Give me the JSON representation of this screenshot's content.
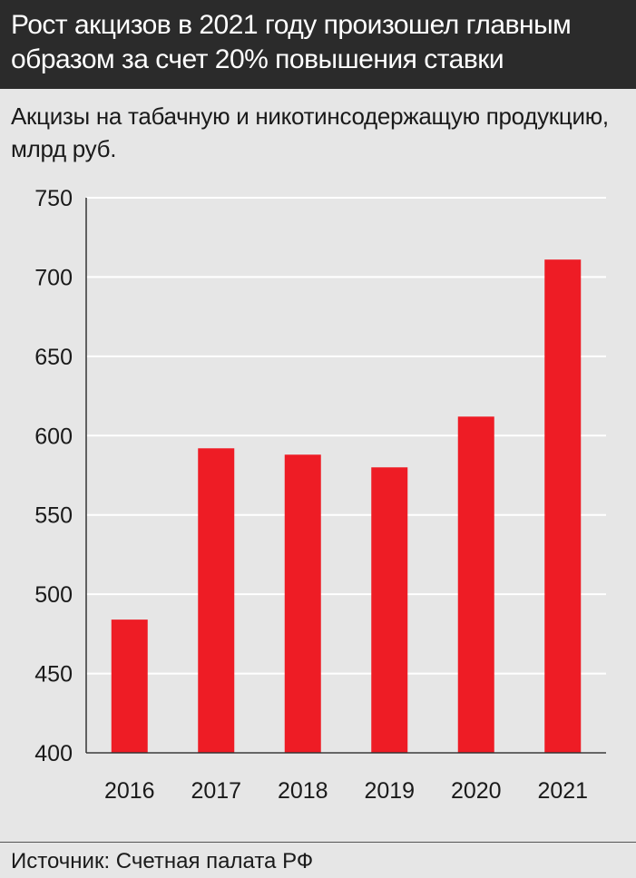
{
  "header": {
    "title": "Рост акцизов в 2021 году произошел главным образом за счет 20% повышения ставки"
  },
  "subtitle": "Акцизы на табачную и никотинсодержащую продукцию, млрд руб.",
  "source": "Источник: Счетная палата РФ",
  "colors": {
    "bar": "#ee1c25",
    "header_bg": "#2b2b2b",
    "background": "#e6e6e6",
    "grid": "#ffffff"
  },
  "chart_data": {
    "type": "bar",
    "categories": [
      "2016",
      "2017",
      "2018",
      "2019",
      "2020",
      "2021"
    ],
    "values": [
      484,
      592,
      588,
      580,
      612,
      711
    ],
    "ylim": [
      400,
      750
    ],
    "yticks": [
      400,
      450,
      500,
      550,
      600,
      650,
      700,
      750
    ],
    "grid": true,
    "legend": "none"
  }
}
